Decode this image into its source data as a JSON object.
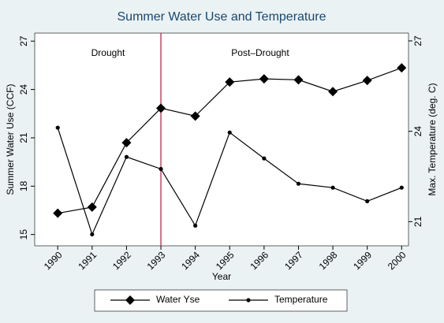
{
  "chart_data": {
    "type": "line",
    "title": "Summer Water Use and Temperature",
    "x_label": "Year",
    "y_label": "Summer Water Use (CCF)",
    "y2_label": "Max. Temperature (deg. C)",
    "x": [
      1990,
      1991,
      1992,
      1993,
      1994,
      1995,
      1996,
      1997,
      1998,
      1999,
      2000
    ],
    "xlim": [
      1989.33,
      2000.2
    ],
    "xticks": [
      1990,
      1991,
      1992,
      1993,
      1994,
      1995,
      1996,
      1997,
      1998,
      1999,
      2000
    ],
    "ylim": [
      14.3,
      27.5
    ],
    "yticks": [
      15,
      18,
      21,
      24,
      27
    ],
    "y2lim": [
      20.2,
      27.26
    ],
    "y2ticks": [
      21,
      24,
      27
    ],
    "xline": 1993,
    "xline_color": "#c0284a",
    "annotations": [
      "Drought",
      "Post–Drought"
    ],
    "series": [
      {
        "name": "Water Yse",
        "color": "#000000",
        "marker": "diamond",
        "values": [
          16.32,
          16.7,
          20.7,
          22.84,
          22.35,
          24.46,
          24.66,
          24.6,
          23.87,
          24.56,
          25.34
        ]
      },
      {
        "name": "Temperature",
        "color": "#000000",
        "marker": "circle",
        "axis": "y2",
        "values": [
          24.12,
          20.58,
          23.15,
          22.75,
          20.87,
          23.96,
          23.1,
          22.26,
          22.13,
          21.68,
          22.13
        ]
      }
    ]
  }
}
